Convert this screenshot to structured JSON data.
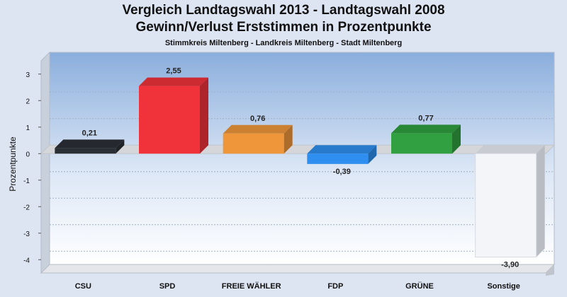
{
  "title": "Vergleich Landtagswahl 2013 - Landtagswahl 2008",
  "subtitle": "Gewinn/Verlust Erststimmen in Prozentpunkte",
  "caption": "Stimmkreis Miltenberg - Landkreis Miltenberg - Stadt Miltenberg",
  "chart_data": {
    "type": "bar",
    "title": "Vergleich Landtagswahl 2013 - Landtagswahl 2008",
    "subtitle": "Gewinn/Verlust Erststimmen in Prozentpunkte",
    "xlabel": "",
    "ylabel": "Prozentpunkte",
    "ylim": [
      -4.5,
      3.5
    ],
    "yticks": [
      3,
      2,
      1,
      0,
      -1,
      -2,
      -3,
      -4
    ],
    "grid": true,
    "categories": [
      "CSU",
      "SPD",
      "FREIE WÄHLER",
      "FDP",
      "GRÜNE",
      "Sonstige"
    ],
    "values": [
      0.21,
      2.55,
      0.76,
      -0.39,
      0.77,
      -3.9
    ],
    "data_labels": [
      "0,21",
      "2,55",
      "0,76",
      "-0,39",
      "0,77",
      "-3,90"
    ],
    "colors": [
      "#2b2f36",
      "#f0323a",
      "#f0963a",
      "#2e8ff0",
      "#30a040",
      "#f4f5f8"
    ]
  }
}
